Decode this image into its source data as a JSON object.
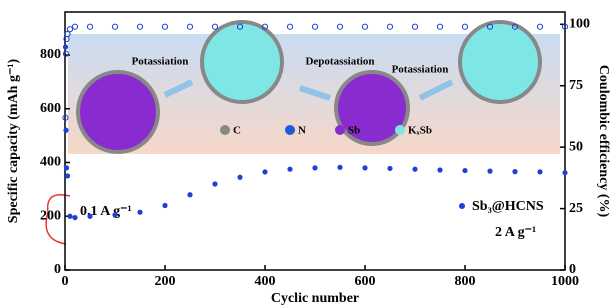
{
  "chart_data": {
    "type": "scatter",
    "xlabel": "Cyclic number",
    "ylabel": "Specific capacity (mAh g⁻¹)",
    "y2label": "Coulombic efficiency (%)",
    "x": [
      1,
      2,
      3,
      5,
      10,
      20,
      50,
      100,
      150,
      200,
      250,
      300,
      350,
      400,
      450,
      500,
      550,
      600,
      650,
      700,
      750,
      800,
      850,
      900,
      950,
      1000
    ],
    "series": [
      {
        "name": "Sb₃@HCNS",
        "color": "#1f3fd6",
        "values": [
          830,
          520,
          380,
          350,
          200,
          195,
          200,
          205,
          215,
          240,
          280,
          320,
          345,
          365,
          375,
          380,
          382,
          380,
          378,
          375,
          372,
          370,
          368,
          366,
          365,
          362
        ]
      },
      {
        "color": "#1f3fd6",
        "axis": "y2",
        "values": [
          62,
          88,
          94,
          96,
          98,
          99,
          99,
          99,
          99,
          99,
          99,
          99,
          99,
          99,
          99,
          99,
          99,
          99,
          99,
          99,
          99,
          99,
          99,
          99,
          99,
          99
        ]
      }
    ],
    "xlim": [
      0,
      1000
    ],
    "xticks": [
      0,
      200,
      400,
      600,
      800,
      1000
    ],
    "ylim": [
      0,
      960
    ],
    "yticks": [
      0,
      200,
      400,
      600,
      800
    ],
    "y2lim": [
      0,
      105
    ],
    "y2ticks": [
      0,
      25,
      50,
      75,
      100
    ],
    "annotations": [
      "0.1 A g⁻¹",
      "2 A g⁻¹"
    ],
    "inset": {
      "steps": [
        "Potassiation",
        "Depotassiation",
        "Potassiation"
      ],
      "legend": [
        "C",
        "N",
        "Sb",
        "KₓSb"
      ]
    }
  }
}
